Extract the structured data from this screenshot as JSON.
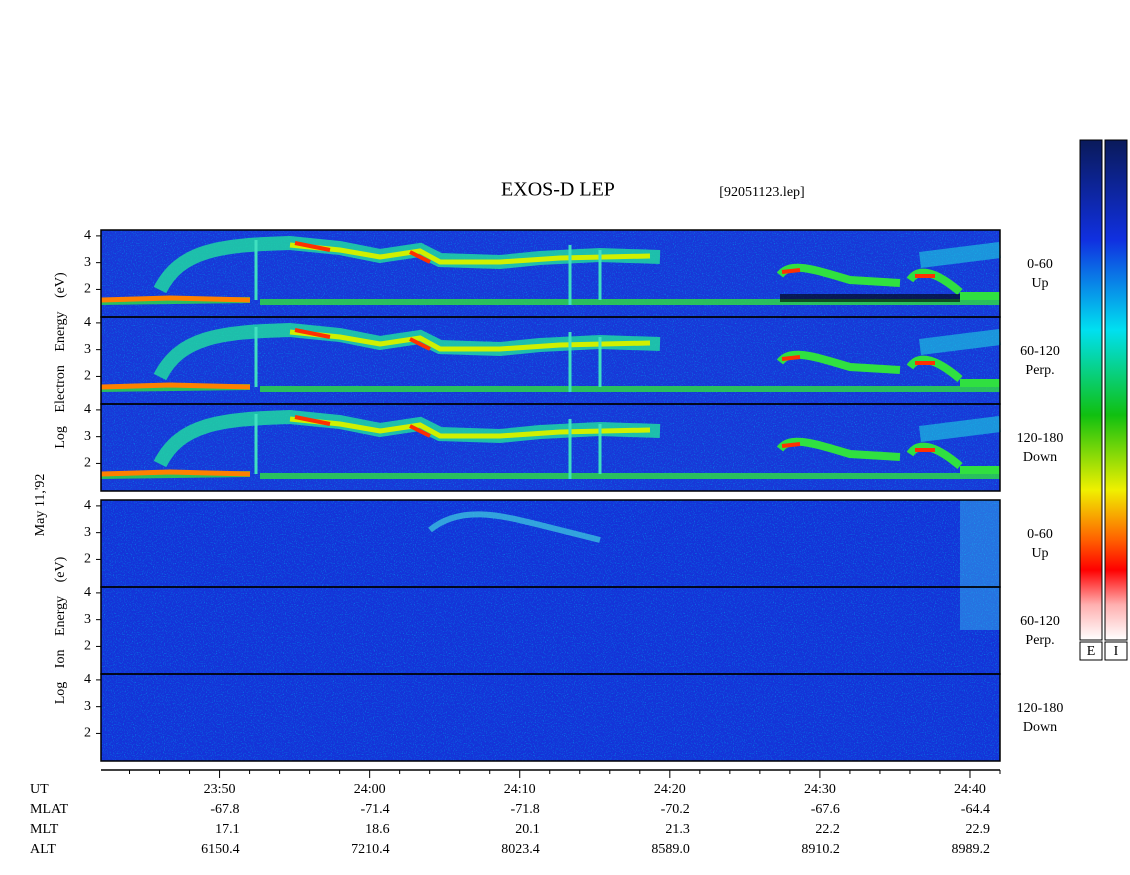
{
  "title": "EXOS-D LEP",
  "file": "[92051123.lep]",
  "date": "May 11,'92",
  "chart_data": {
    "type": "spectrogram",
    "xlim": [
      1422.1,
      1482.0
    ],
    "xticks": [
      {
        "value": 1430,
        "label": "23:50"
      },
      {
        "value": 1440,
        "label": "24:00"
      },
      {
        "value": 1450,
        "label": "24:10"
      },
      {
        "value": 1460,
        "label": "24:20"
      },
      {
        "value": 1470,
        "label": "24:30"
      },
      {
        "value": 1480,
        "label": "24:40"
      }
    ],
    "xminorticks": [
      1424,
      1426,
      1428,
      1432,
      1434,
      1436,
      1438,
      1442,
      1444,
      1446,
      1448,
      1452,
      1454,
      1456,
      1458,
      1462,
      1464,
      1466,
      1468,
      1472,
      1474,
      1476,
      1478,
      1482
    ],
    "ylim": [
      0.97,
      4.22
    ],
    "yticks": [
      2,
      3,
      4
    ],
    "groups": [
      {
        "ylabel": "Log Electron Energy (eV)",
        "panels": [
          {
            "pitch": "0-60",
            "direction": "Up"
          },
          {
            "pitch": "60-120",
            "direction": "Perp."
          },
          {
            "pitch": "120-180",
            "direction": "Down"
          }
        ]
      },
      {
        "ylabel": "Log Ion Energy (eV)",
        "panels": [
          {
            "pitch": "0-60",
            "direction": "Up"
          },
          {
            "pitch": "60-120",
            "direction": "Perp."
          },
          {
            "pitch": "120-180",
            "direction": "Down"
          }
        ]
      }
    ],
    "colorbars": [
      "E",
      "I"
    ]
  },
  "ephemeris": {
    "time_label": "UT",
    "rows": [
      {
        "label": "MLAT",
        "values": [
          "-67.8",
          "-71.4",
          "-71.8",
          "-70.2",
          "-67.6",
          "-64.4"
        ]
      },
      {
        "label": "MLT",
        "values": [
          "17.1",
          "18.6",
          "20.1",
          "21.3",
          "22.2",
          "22.9"
        ]
      },
      {
        "label": "ALT",
        "values": [
          "6150.4",
          "7210.4",
          "8023.4",
          "8589.0",
          "8910.2",
          "8989.2"
        ]
      }
    ]
  }
}
